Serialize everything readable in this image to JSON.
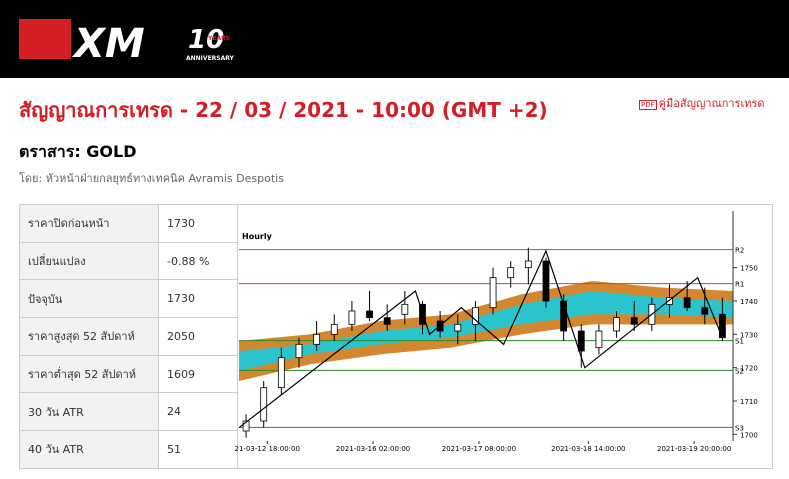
{
  "header": {
    "logo": "XM",
    "anniversary_number": "10",
    "anniversary_years": "YEARS",
    "anniversary_text": "ANNIVERSARY"
  },
  "title": "สัญญาณการเทรด - 22 / 03 / 2021 - 10:00 (GMT +2)",
  "guide_link": "คู่มือสัญญาณการเทรด",
  "instrument": "ตราสาร: GOLD",
  "author": "โดย: หัวหน้าฝ่ายกลยุทธ์ทางเทคนิค Avramis Despotis",
  "table": {
    "rows": [
      [
        "ราคาปิดก่อนหน้า",
        "1730"
      ],
      [
        "เปลี่ยนแปลง",
        "-0.88 %"
      ],
      [
        "ปัจจุบัน",
        "1730"
      ],
      [
        "ราคาสูงสุด 52 สัปดาห์",
        "2050"
      ],
      [
        "ราคาต่ำสุด 52 สัปดาห์",
        "1609"
      ],
      [
        "30 วัน ATR",
        "24"
      ],
      [
        "40 วัน ATR",
        "51"
      ]
    ]
  },
  "chart_data": {
    "type": "candlestick",
    "title": "Hourly",
    "xlim": [
      0,
      140
    ],
    "ylim": [
      1698,
      1767
    ],
    "yticks": [
      1700,
      1710,
      1720,
      1730,
      1740,
      1750
    ],
    "xticks": [
      {
        "value": 8,
        "label": "21-03-12 18:00:00"
      },
      {
        "value": 38,
        "label": "2021-03-16 02:00:00"
      },
      {
        "value": 68,
        "label": "2021-03-17 08:00:00"
      },
      {
        "value": 99,
        "label": "2021-03-18 14:00:00"
      },
      {
        "value": 129,
        "label": "2021-03-19 20:00:00"
      }
    ],
    "candles": {
      "x": [
        2,
        7,
        12,
        17,
        22,
        27,
        32,
        37,
        42,
        47,
        52,
        57,
        62,
        67,
        72,
        77,
        82,
        87,
        92,
        97,
        102,
        107,
        112,
        117,
        122,
        127,
        132,
        137
      ],
      "open": [
        1701,
        1704,
        1714,
        1723,
        1727,
        1730,
        1733,
        1737,
        1735,
        1736,
        1739,
        1734,
        1731,
        1733,
        1738,
        1747,
        1750,
        1752,
        1740,
        1731,
        1726,
        1731,
        1735,
        1733,
        1739,
        1741,
        1738,
        1736
      ],
      "high": [
        1706,
        1716,
        1726,
        1729,
        1734,
        1736,
        1740,
        1743,
        1739,
        1743,
        1740,
        1737,
        1736,
        1740,
        1750,
        1752,
        1756,
        1753,
        1742,
        1733,
        1733,
        1737,
        1740,
        1741,
        1745,
        1746,
        1744,
        1741
      ],
      "low": [
        1699,
        1702,
        1712,
        1720,
        1725,
        1728,
        1731,
        1734,
        1731,
        1733,
        1730,
        1729,
        1727,
        1728,
        1736,
        1744,
        1745,
        1738,
        1728,
        1720,
        1724,
        1729,
        1731,
        1731,
        1735,
        1737,
        1733,
        1728
      ],
      "close": [
        1704,
        1714,
        1723,
        1727,
        1730,
        1733,
        1737,
        1735,
        1733,
        1739,
        1733,
        1731,
        1733,
        1738,
        1747,
        1750,
        1752,
        1740,
        1731,
        1725,
        1731,
        1735,
        1733,
        1739,
        1741,
        1738,
        1736,
        1729
      ]
    },
    "zigzag": {
      "color": "#000000",
      "x": [
        0,
        50,
        54,
        63,
        75,
        87,
        98,
        130,
        137
      ],
      "y": [
        1702,
        1743,
        1730,
        1738,
        1727,
        1755,
        1720,
        1747,
        1729
      ]
    },
    "bands": [
      {
        "color": "#d4872f",
        "x": [
          0,
          20,
          40,
          60,
          80,
          100,
          120,
          140
        ],
        "lower": [
          1716,
          1721,
          1724,
          1726,
          1730,
          1733,
          1733,
          1733
        ],
        "upper": [
          1728,
          1730,
          1734,
          1736,
          1742,
          1746,
          1744,
          1743
        ]
      },
      {
        "color": "#2cc4cc",
        "x": [
          0,
          20,
          40,
          60,
          80,
          100,
          120,
          140
        ],
        "lower": [
          1719,
          1724,
          1727,
          1729,
          1733,
          1736,
          1736,
          1735
        ],
        "upper": [
          1725,
          1727,
          1731,
          1733,
          1739,
          1743,
          1741,
          1740
        ]
      }
    ],
    "levels": [
      {
        "label": "R2",
        "value": 1755.4,
        "color": "#d04040"
      },
      {
        "label": "R1",
        "value": 1745.2,
        "color": "#d04040"
      },
      {
        "label": "S1",
        "value": 1728.1,
        "color": "#2a8a2a"
      },
      {
        "label": "S2",
        "value": 1719.2,
        "color": "#2a8a2a"
      },
      {
        "label": "S3",
        "value": 1702.1,
        "color": "#2a8a2a"
      }
    ]
  }
}
